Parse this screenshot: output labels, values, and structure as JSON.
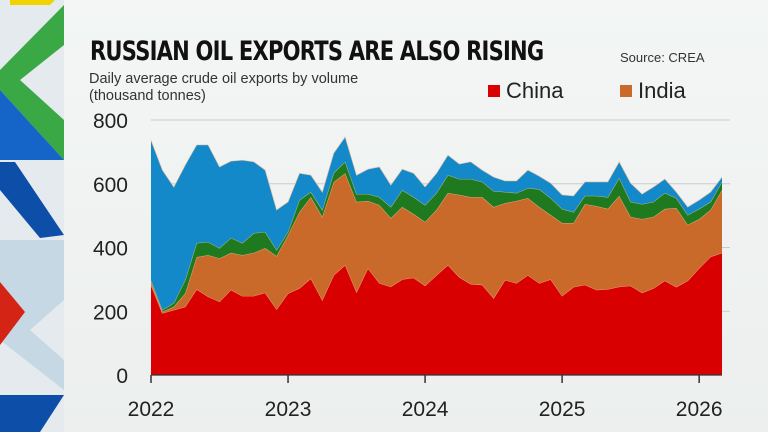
{
  "title": "RUSSIAN OIL EXPORTS ARE ALSO RISING",
  "subtitle_line1": "Daily average crude oil exports by volume",
  "subtitle_line2": "(thousand tonnes)",
  "source": "Source: CREA",
  "colors": {
    "china": "#d80000",
    "india": "#c96a2b",
    "green": "#1f7a1f",
    "blue": "#1389c9"
  },
  "chart_data": {
    "type": "area",
    "stacked": true,
    "title": "RUSSIAN OIL EXPORTS ARE ALSO RISING",
    "ylabel": "Daily average crude oil exports by volume (thousand tonnes)",
    "x_start": "2022-01",
    "x_step": "month",
    "xticks": [
      "2022",
      "2023",
      "2024",
      "2025",
      "2026"
    ],
    "yticks": [
      0,
      200,
      400,
      600,
      800
    ],
    "ylim": [
      0,
      800
    ],
    "grid": true,
    "legend": "top-right",
    "series": [
      {
        "name": "China",
        "color": "#d80000",
        "values": [
          282,
          194,
          204,
          214,
          269,
          246,
          230,
          267,
          248,
          248,
          258,
          206,
          256,
          272,
          303,
          235,
          313,
          345,
          260,
          335,
          288,
          277,
          300,
          305,
          280,
          313,
          345,
          307,
          285,
          283,
          241,
          298,
          288,
          313,
          288,
          300,
          248,
          276,
          283,
          267,
          269,
          277,
          280,
          258,
          272,
          296,
          276,
          296,
          335,
          371,
          383
        ]
      },
      {
        "name": "India",
        "color": "#c96a2b",
        "values": [
          10,
          4,
          10,
          42,
          101,
          130,
          136,
          116,
          128,
          135,
          140,
          167,
          183,
          239,
          255,
          261,
          292,
          288,
          283,
          211,
          245,
          215,
          227,
          200,
          200,
          205,
          226,
          258,
          273,
          275,
          286,
          241,
          258,
          242,
          239,
          202,
          229,
          201,
          253,
          263,
          252,
          285,
          216,
          231,
          224,
          225,
          248,
          175,
          154,
          147,
          197
        ]
      },
      {
        "color": "#1f7a1f",
        "values": [
          6,
          6,
          12,
          42,
          44,
          41,
          32,
          47,
          38,
          62,
          51,
          19,
          10,
          38,
          16,
          22,
          29,
          36,
          25,
          22,
          25,
          35,
          53,
          53,
          53,
          53,
          56,
          50,
          57,
          48,
          50,
          35,
          25,
          31,
          56,
          53,
          44,
          34,
          26,
          32,
          37,
          56,
          47,
          47,
          47,
          50,
          31,
          31,
          32,
          25,
          26
        ]
      },
      {
        "color": "#1389c9",
        "values": [
          439,
          439,
          364,
          361,
          308,
          305,
          255,
          241,
          260,
          224,
          194,
          126,
          94,
          84,
          53,
          56,
          62,
          78,
          59,
          78,
          95,
          69,
          66,
          75,
          57,
          62,
          63,
          47,
          54,
          37,
          44,
          35,
          38,
          57,
          41,
          47,
          44,
          51,
          44,
          44,
          48,
          51,
          59,
          32,
          47,
          44,
          19,
          25,
          28,
          31,
          15
        ]
      }
    ]
  }
}
